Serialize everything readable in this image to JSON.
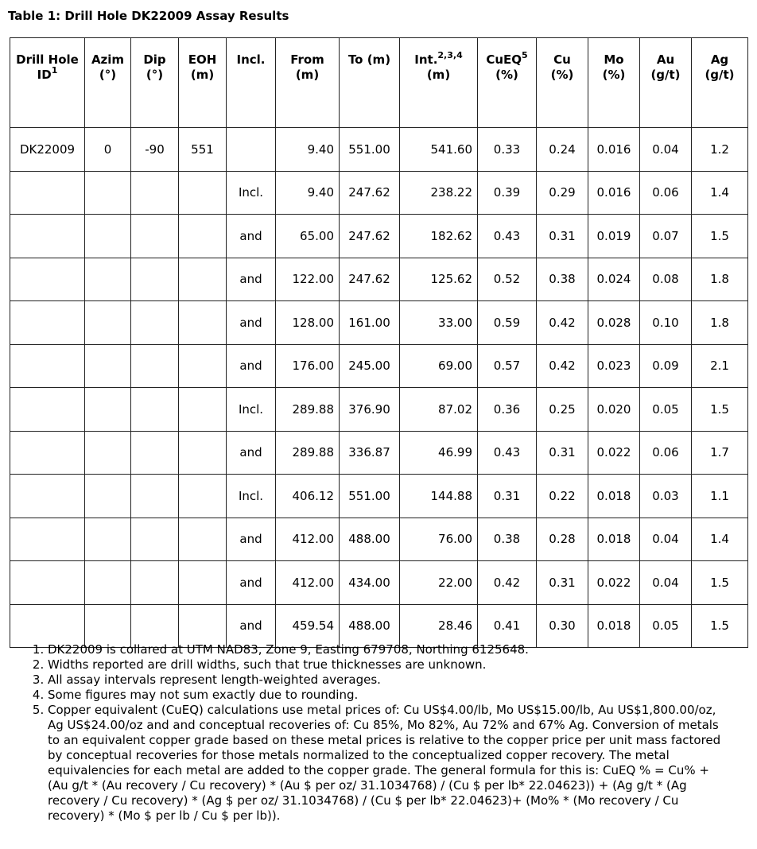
{
  "title": "Table 1: Drill Hole DK22009 Assay Results",
  "headers": [
    {
      "t": "Drill Hole ID",
      "sup": "1"
    },
    {
      "t": "Azim (°)"
    },
    {
      "t": "Dip (°)"
    },
    {
      "t": "EOH (m)"
    },
    {
      "t": "Incl."
    },
    {
      "t": "From (m)"
    },
    {
      "t": "To (m)"
    },
    {
      "t": "Int.",
      "sup": "2,3,4",
      "t2": "(m)"
    },
    {
      "t": "CuEQ",
      "sup": "5",
      "t2": "(%)"
    },
    {
      "t": "Cu (%)"
    },
    {
      "t": "Mo (%)"
    },
    {
      "t": "Au (g/t)"
    },
    {
      "t": "Ag (g/t)"
    }
  ],
  "rows": [
    [
      "DK22009",
      "0",
      "-90",
      "551",
      "",
      "9.40",
      "551.00",
      "541.60",
      "0.33",
      "0.24",
      "0.016",
      "0.04",
      "1.2"
    ],
    [
      "",
      "",
      "",
      "",
      "Incl.",
      "9.40",
      "247.62",
      "238.22",
      "0.39",
      "0.29",
      "0.016",
      "0.06",
      "1.4"
    ],
    [
      "",
      "",
      "",
      "",
      "and",
      "65.00",
      "247.62",
      "182.62",
      "0.43",
      "0.31",
      "0.019",
      "0.07",
      "1.5"
    ],
    [
      "",
      "",
      "",
      "",
      "and",
      "122.00",
      "247.62",
      "125.62",
      "0.52",
      "0.38",
      "0.024",
      "0.08",
      "1.8"
    ],
    [
      "",
      "",
      "",
      "",
      "and",
      "128.00",
      "161.00",
      "33.00",
      "0.59",
      "0.42",
      "0.028",
      "0.10",
      "1.8"
    ],
    [
      "",
      "",
      "",
      "",
      "and",
      "176.00",
      "245.00",
      "69.00",
      "0.57",
      "0.42",
      "0.023",
      "0.09",
      "2.1"
    ],
    [
      "",
      "",
      "",
      "",
      "Incl.",
      "289.88",
      "376.90",
      "87.02",
      "0.36",
      "0.25",
      "0.020",
      "0.05",
      "1.5"
    ],
    [
      "",
      "",
      "",
      "",
      "and",
      "289.88",
      "336.87",
      "46.99",
      "0.43",
      "0.31",
      "0.022",
      "0.06",
      "1.7"
    ],
    [
      "",
      "",
      "",
      "",
      "Incl.",
      "406.12",
      "551.00",
      "144.88",
      "0.31",
      "0.22",
      "0.018",
      "0.03",
      "1.1"
    ],
    [
      "",
      "",
      "",
      "",
      "and",
      "412.00",
      "488.00",
      "76.00",
      "0.38",
      "0.28",
      "0.018",
      "0.04",
      "1.4"
    ],
    [
      "",
      "",
      "",
      "",
      "and",
      "412.00",
      "434.00",
      "22.00",
      "0.42",
      "0.31",
      "0.022",
      "0.04",
      "1.5"
    ],
    [
      "",
      "",
      "",
      "",
      "and",
      "459.54",
      "488.00",
      "28.46",
      "0.41",
      "0.30",
      "0.018",
      "0.05",
      "1.5"
    ]
  ],
  "footnotes": [
    "DK22009 is collared at UTM NAD83, Zone 9, Easting 679708, Northing 6125648.",
    "Widths reported are drill widths, such that true thicknesses are unknown.",
    "All assay intervals represent length-weighted averages.",
    "Some figures may not sum exactly due to rounding.",
    "Copper equivalent (CuEQ) calculations use metal prices of: Cu US$4.00/lb, Mo US$15.00/lb, Au US$1,800.00/oz, Ag US$24.00/oz and and conceptual recoveries of: Cu 85%, Mo 82%, Au 72% and 67% Ag. Conversion of metals to an equivalent copper grade based on these metal prices is relative to the copper price per unit mass factored by conceptual recoveries for those metals normalized to the conceptualized copper recovery. The metal equivalencies for each metal are added to the copper grade. The general formula for this is: CuEQ % = Cu% + (Au g/t * (Au recovery / Cu recovery) * (Au $ per oz/ 31.1034768) / (Cu $ per lb* 22.04623)) + (Ag g/t * (Ag recovery / Cu recovery) * (Ag $ per oz/ 31.1034768) / (Cu $ per lb* 22.04623)+ (Mo% * (Mo recovery / Cu recovery) * (Mo $ per lb / Cu $ per lb))."
  ]
}
